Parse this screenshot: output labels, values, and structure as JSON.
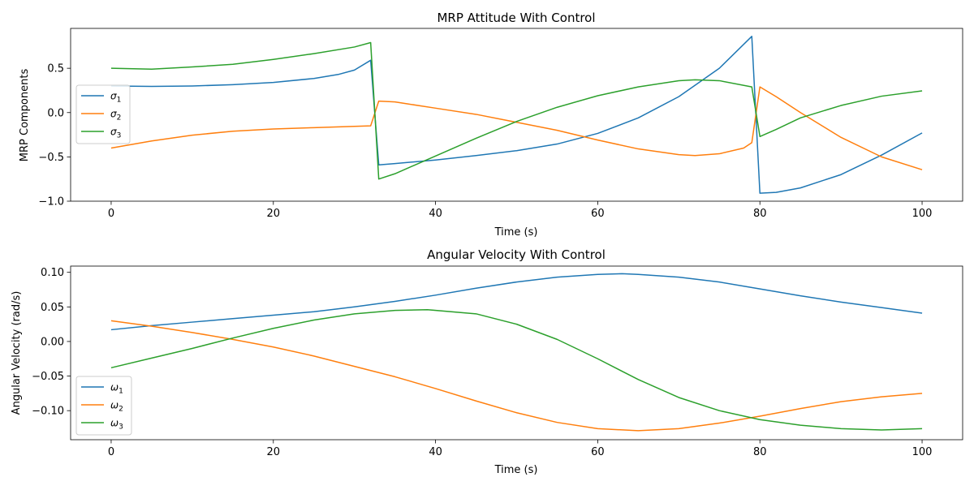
{
  "chart_data": [
    {
      "type": "line",
      "title": "MRP Attitude With Control",
      "xlabel": "Time (s)",
      "ylabel": "MRP Components",
      "xlim": [
        -5,
        105
      ],
      "ylim": [
        -1.0,
        0.95
      ],
      "xticks": [
        0,
        20,
        40,
        60,
        80,
        100
      ],
      "xtick_labels": [
        "0",
        "20",
        "40",
        "60",
        "80",
        "100"
      ],
      "yticks": [
        -1.0,
        -0.5,
        0.0,
        0.5
      ],
      "ytick_labels": [
        "−1.0",
        "−0.5",
        "0.0",
        "0.5"
      ],
      "grid": false,
      "legend_position": "center-left",
      "series": [
        {
          "name": "σ1",
          "base": "σ",
          "sub": "1",
          "color": "#1f77b4",
          "points": [
            [
              0,
              0.3
            ],
            [
              5,
              0.295
            ],
            [
              10,
              0.3
            ],
            [
              15,
              0.315
            ],
            [
              20,
              0.34
            ],
            [
              25,
              0.385
            ],
            [
              28,
              0.43
            ],
            [
              30,
              0.48
            ],
            [
              32,
              0.59
            ],
            [
              33,
              -0.59
            ],
            [
              35,
              -0.575
            ],
            [
              40,
              -0.535
            ],
            [
              45,
              -0.485
            ],
            [
              50,
              -0.43
            ],
            [
              55,
              -0.355
            ],
            [
              60,
              -0.235
            ],
            [
              65,
              -0.06
            ],
            [
              70,
              0.18
            ],
            [
              75,
              0.5
            ],
            [
              79,
              0.86
            ],
            [
              80,
              -0.91
            ],
            [
              82,
              -0.9
            ],
            [
              85,
              -0.85
            ],
            [
              90,
              -0.7
            ],
            [
              95,
              -0.48
            ],
            [
              100,
              -0.23
            ]
          ]
        },
        {
          "name": "σ2",
          "base": "σ",
          "sub": "2",
          "color": "#ff7f0e",
          "points": [
            [
              0,
              -0.4
            ],
            [
              5,
              -0.32
            ],
            [
              10,
              -0.255
            ],
            [
              15,
              -0.21
            ],
            [
              20,
              -0.185
            ],
            [
              25,
              -0.17
            ],
            [
              30,
              -0.155
            ],
            [
              32,
              -0.15
            ],
            [
              33,
              0.13
            ],
            [
              35,
              0.12
            ],
            [
              40,
              0.05
            ],
            [
              45,
              -0.02
            ],
            [
              50,
              -0.11
            ],
            [
              55,
              -0.2
            ],
            [
              60,
              -0.31
            ],
            [
              65,
              -0.41
            ],
            [
              70,
              -0.475
            ],
            [
              72,
              -0.485
            ],
            [
              75,
              -0.465
            ],
            [
              78,
              -0.4
            ],
            [
              79,
              -0.34
            ],
            [
              80,
              0.29
            ],
            [
              82,
              0.18
            ],
            [
              85,
              0.0
            ],
            [
              90,
              -0.28
            ],
            [
              95,
              -0.5
            ],
            [
              100,
              -0.645
            ]
          ]
        },
        {
          "name": "σ3",
          "base": "σ",
          "sub": "3",
          "color": "#2ca02c",
          "points": [
            [
              0,
              0.5
            ],
            [
              5,
              0.49
            ],
            [
              10,
              0.515
            ],
            [
              15,
              0.545
            ],
            [
              20,
              0.6
            ],
            [
              25,
              0.665
            ],
            [
              30,
              0.74
            ],
            [
              32,
              0.79
            ],
            [
              33,
              -0.75
            ],
            [
              35,
              -0.69
            ],
            [
              40,
              -0.49
            ],
            [
              45,
              -0.29
            ],
            [
              50,
              -0.1
            ],
            [
              55,
              0.06
            ],
            [
              60,
              0.19
            ],
            [
              65,
              0.29
            ],
            [
              70,
              0.36
            ],
            [
              72,
              0.37
            ],
            [
              75,
              0.36
            ],
            [
              79,
              0.29
            ],
            [
              80,
              -0.27
            ],
            [
              82,
              -0.19
            ],
            [
              85,
              -0.06
            ],
            [
              90,
              0.08
            ],
            [
              95,
              0.185
            ],
            [
              100,
              0.245
            ]
          ]
        }
      ]
    },
    {
      "type": "line",
      "title": "Angular Velocity With Control",
      "xlabel": "Time (s)",
      "ylabel": "Angular Velocity (rad/s)",
      "xlim": [
        -5,
        105
      ],
      "ylim": [
        -0.142,
        0.109
      ],
      "xticks": [
        0,
        20,
        40,
        60,
        80,
        100
      ],
      "xtick_labels": [
        "0",
        "20",
        "40",
        "60",
        "80",
        "100"
      ],
      "yticks": [
        -0.1,
        -0.05,
        0.0,
        0.05,
        0.1
      ],
      "ytick_labels": [
        "−0.10",
        "−0.05",
        "0.00",
        "0.05",
        "0.10"
      ],
      "grid": false,
      "legend_position": "lower-left",
      "series": [
        {
          "name": "ω1",
          "base": "ω",
          "sub": "1",
          "color": "#1f77b4",
          "points": [
            [
              0,
              0.017
            ],
            [
              5,
              0.023
            ],
            [
              10,
              0.028
            ],
            [
              15,
              0.033
            ],
            [
              20,
              0.038
            ],
            [
              25,
              0.043
            ],
            [
              30,
              0.05
            ],
            [
              35,
              0.058
            ],
            [
              40,
              0.067
            ],
            [
              45,
              0.077
            ],
            [
              50,
              0.086
            ],
            [
              55,
              0.093
            ],
            [
              60,
              0.097
            ],
            [
              63,
              0.098
            ],
            [
              65,
              0.097
            ],
            [
              70,
              0.093
            ],
            [
              75,
              0.086
            ],
            [
              80,
              0.076
            ],
            [
              85,
              0.066
            ],
            [
              90,
              0.057
            ],
            [
              95,
              0.049
            ],
            [
              100,
              0.041
            ]
          ]
        },
        {
          "name": "ω2",
          "base": "ω",
          "sub": "2",
          "color": "#ff7f0e",
          "points": [
            [
              0,
              0.03
            ],
            [
              5,
              0.022
            ],
            [
              10,
              0.013
            ],
            [
              15,
              0.003
            ],
            [
              20,
              -0.008
            ],
            [
              25,
              -0.021
            ],
            [
              30,
              -0.036
            ],
            [
              35,
              -0.051
            ],
            [
              40,
              -0.068
            ],
            [
              45,
              -0.086
            ],
            [
              50,
              -0.103
            ],
            [
              55,
              -0.117
            ],
            [
              60,
              -0.126
            ],
            [
              65,
              -0.129
            ],
            [
              70,
              -0.126
            ],
            [
              75,
              -0.118
            ],
            [
              80,
              -0.108
            ],
            [
              85,
              -0.097
            ],
            [
              90,
              -0.087
            ],
            [
              95,
              -0.08
            ],
            [
              100,
              -0.075
            ]
          ]
        },
        {
          "name": "ω3",
          "base": "ω",
          "sub": "3",
          "color": "#2ca02c",
          "points": [
            [
              0,
              -0.038
            ],
            [
              5,
              -0.024
            ],
            [
              10,
              -0.01
            ],
            [
              15,
              0.005
            ],
            [
              20,
              0.019
            ],
            [
              25,
              0.031
            ],
            [
              30,
              0.04
            ],
            [
              35,
              0.045
            ],
            [
              39,
              0.046
            ],
            [
              45,
              0.04
            ],
            [
              50,
              0.025
            ],
            [
              55,
              0.003
            ],
            [
              60,
              -0.025
            ],
            [
              65,
              -0.055
            ],
            [
              70,
              -0.081
            ],
            [
              75,
              -0.1
            ],
            [
              80,
              -0.113
            ],
            [
              85,
              -0.121
            ],
            [
              90,
              -0.126
            ],
            [
              95,
              -0.128
            ],
            [
              100,
              -0.126
            ]
          ]
        }
      ]
    }
  ]
}
